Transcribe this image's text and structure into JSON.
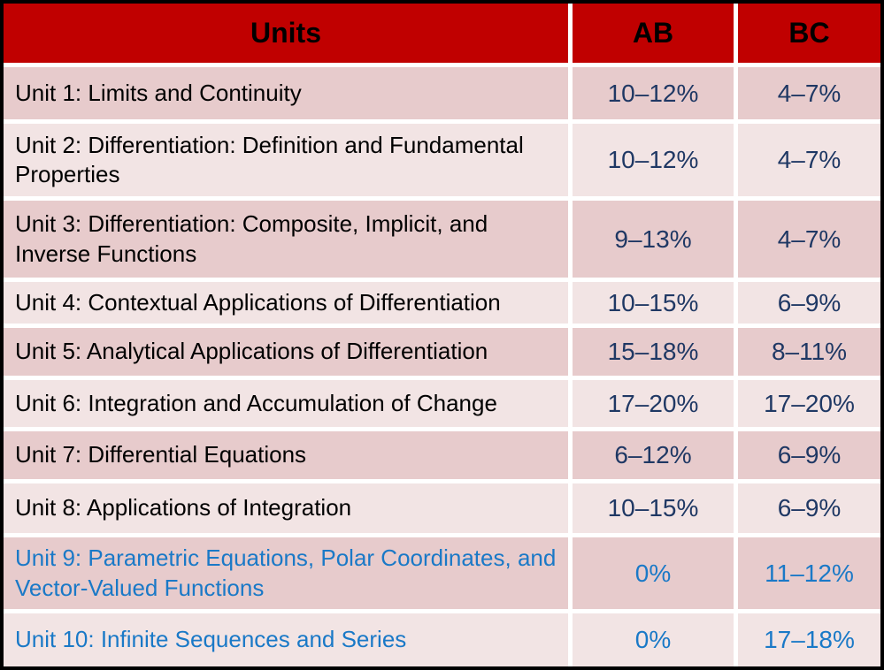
{
  "table": {
    "headers": {
      "units": "Units",
      "ab": "AB",
      "bc": "BC"
    },
    "rows": [
      {
        "unit": "Unit 1: Limits and Continuity",
        "ab": "10–12%",
        "bc": "4–7%",
        "shade": "dark",
        "highlight": false
      },
      {
        "unit": "Unit 2: Differentiation: Definition and Fundamental Properties",
        "ab": "10–12%",
        "bc": "4–7%",
        "shade": "light",
        "highlight": false
      },
      {
        "unit": "Unit 3: Differentiation: Composite, Implicit, and Inverse Functions",
        "ab": "9–13%",
        "bc": "4–7%",
        "shade": "dark",
        "highlight": false
      },
      {
        "unit": "Unit 4: Contextual Applications of Differentiation",
        "ab": "10–15%",
        "bc": "6–9%",
        "shade": "light",
        "highlight": false
      },
      {
        "unit": "Unit 5: Analytical Applications of Differentiation",
        "ab": "15–18%",
        "bc": "8–11%",
        "shade": "dark",
        "highlight": false
      },
      {
        "unit": "Unit 6: Integration and Accumulation of Change",
        "ab": "17–20%",
        "bc": "17–20%",
        "shade": "light",
        "highlight": false
      },
      {
        "unit": "Unit 7: Differential Equations",
        "ab": "6–12%",
        "bc": "6–9%",
        "shade": "dark",
        "highlight": false
      },
      {
        "unit": "Unit 8: Applications of Integration",
        "ab": "10–15%",
        "bc": "6–9%",
        "shade": "light",
        "highlight": false
      },
      {
        "unit": "Unit 9: Parametric Equations, Polar Coordinates, and Vector-Valued Functions",
        "ab": "0%",
        "bc": "11–12%",
        "shade": "dark",
        "highlight": true
      },
      {
        "unit": "Unit 10: Infinite Sequences and Series",
        "ab": "0%",
        "bc": "17–18%",
        "shade": "light",
        "highlight": true
      }
    ],
    "colors": {
      "header_bg": "#C00000",
      "header_text": "#000000",
      "row_dark_bg": "#E7CBCC",
      "row_light_bg": "#F2E4E4",
      "value_text": "#1F3864",
      "bc_only_text": "#1A79C7",
      "frame_border": "#000000",
      "cell_gap": "#FFFFFF"
    }
  }
}
